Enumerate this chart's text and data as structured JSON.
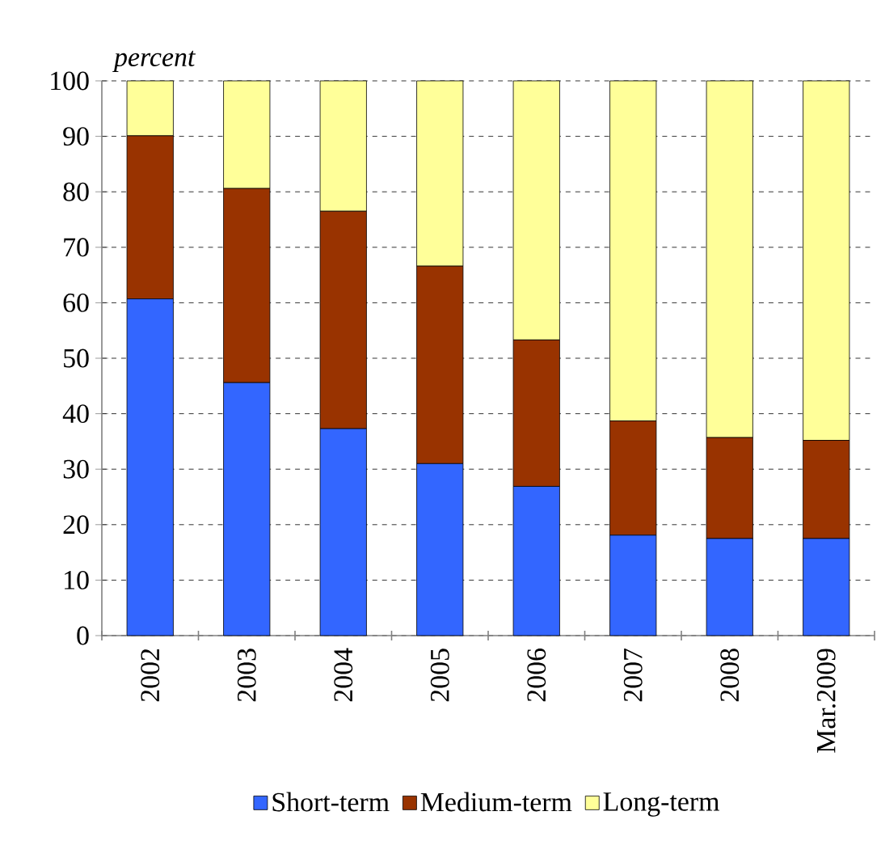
{
  "chart_data": {
    "type": "bar",
    "stacked": true,
    "ylabel": "percent",
    "categories": [
      "2002",
      "2003",
      "2004",
      "2005",
      "2006",
      "2007",
      "2008",
      "Mar.2009"
    ],
    "series": [
      {
        "name": "Short-term",
        "color": "#3366ff",
        "values": [
          60.7,
          45.6,
          37.3,
          31.0,
          26.9,
          18.1,
          17.5,
          17.5
        ]
      },
      {
        "name": "Medium-term",
        "color": "#993300",
        "values": [
          29.4,
          35.0,
          39.2,
          35.6,
          26.4,
          20.6,
          18.2,
          17.7
        ]
      },
      {
        "name": "Long-term",
        "color": "#ffff99",
        "values": [
          9.9,
          19.4,
          23.5,
          33.4,
          46.7,
          61.3,
          64.3,
          64.8
        ]
      }
    ],
    "ylim": [
      0,
      100
    ],
    "yticks": [
      0,
      10,
      20,
      30,
      40,
      50,
      60,
      70,
      80,
      90,
      100
    ],
    "grid": "y",
    "legend": "bottom"
  }
}
